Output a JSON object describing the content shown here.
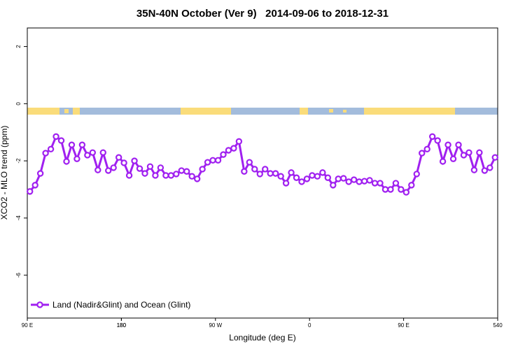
{
  "chart_data": {
    "type": "line",
    "title": "35N-40N October (Ver 9)   2014-09-06 to 2018-12-31",
    "xlabel": "Longitude (deg E)",
    "ylabel": "XCO2 - MLO trend (ppm)",
    "xlim": [
      90,
      540
    ],
    "ylim": [
      -7.5,
      2.65
    ],
    "xticks": [
      {
        "value": 90,
        "label": "90 E"
      },
      180,
      {
        "value": 270,
        "label": "90 W"
      },
      {
        "value": 360,
        "label": "0"
      },
      {
        "value": 450,
        "label": "90 E"
      },
      180,
      540
    ],
    "yticks": [
      2,
      0,
      -2,
      -4,
      -6
    ],
    "legend": "bottom-left",
    "x": [
      92.5,
      97.5,
      102.5,
      107.5,
      112.5,
      117.5,
      122.5,
      127.5,
      132.5,
      137.5,
      142.5,
      147.5,
      152.5,
      157.5,
      162.5,
      167.5,
      172.5,
      177.5,
      182.5,
      187.5,
      192.5,
      197.5,
      202.5,
      207.5,
      212.5,
      217.5,
      222.5,
      227.5,
      232.5,
      237.5,
      242.5,
      247.5,
      252.5,
      257.5,
      262.5,
      267.5,
      272.5,
      277.5,
      282.5,
      287.5,
      292.5,
      297.5,
      302.5,
      307.5,
      312.5,
      317.5,
      322.5,
      327.5,
      332.5,
      337.5,
      342.5,
      347.5,
      352.5,
      357.5,
      362.5,
      367.5,
      372.5,
      377.5,
      382.5,
      387.5,
      392.5,
      397.5,
      402.5,
      407.5,
      412.5,
      417.5,
      422.5,
      427.5,
      432.5,
      437.5,
      442.5,
      447.5,
      452.5,
      457.5,
      462.5,
      467.5,
      472.5,
      477.5,
      482.5,
      487.5,
      492.5,
      497.5,
      502.5,
      507.5,
      512.5,
      517.5,
      522.5,
      527.5,
      532.5,
      537.5
    ],
    "series": [
      {
        "name": "Land (Nadir&Glint) and Ocean (Glint)",
        "color": "#a020f0",
        "values": [
          -3.07,
          -2.85,
          -2.44,
          -1.73,
          -1.59,
          -1.15,
          -1.29,
          -2.02,
          -1.44,
          -1.93,
          -1.44,
          -1.8,
          -1.71,
          -2.32,
          -1.71,
          -2.34,
          -2.24,
          -1.88,
          -2.07,
          -2.51,
          -2.0,
          -2.27,
          -2.44,
          -2.2,
          -2.51,
          -2.24,
          -2.51,
          -2.51,
          -2.46,
          -2.34,
          -2.37,
          -2.54,
          -2.63,
          -2.29,
          -2.05,
          -1.98,
          -1.98,
          -1.78,
          -1.63,
          -1.56,
          -1.32,
          -2.37,
          -2.05,
          -2.29,
          -2.46,
          -2.29,
          -2.44,
          -2.44,
          -2.54,
          -2.78,
          -2.41,
          -2.59,
          -2.73,
          -2.63,
          -2.51,
          -2.54,
          -2.41,
          -2.59,
          -2.85,
          -2.63,
          -2.61,
          -2.73,
          -2.66,
          -2.73,
          -2.71,
          -2.68,
          -2.78,
          -2.78,
          -3.0,
          -3.0,
          -2.78,
          -3.0,
          -3.1,
          -2.85,
          -2.46,
          -1.73,
          -1.59,
          -1.15,
          -1.29,
          -2.02,
          -1.44,
          -1.93,
          -1.44,
          -1.8,
          -1.71,
          -2.32,
          -1.71,
          -2.34,
          -2.24,
          -1.88
        ]
      }
    ]
  }
}
